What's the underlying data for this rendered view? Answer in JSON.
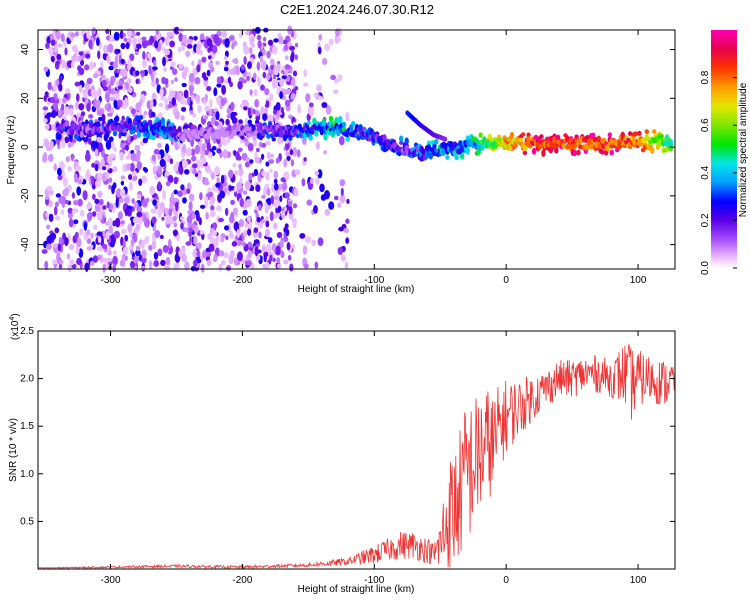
{
  "title": "C2E1.2024.246.07.30.R12",
  "colors": {
    "line": "#ee3333",
    "axis": "#000000"
  },
  "chart_data": [
    {
      "type": "heatmap",
      "xlabel": "Height of straight line (km)",
      "ylabel": "Frequency (Hz)",
      "xlim": [
        -355,
        128
      ],
      "ylim": [
        -50,
        48
      ],
      "x_ticks": [
        "-300",
        "-200",
        "-100",
        "0",
        "100"
      ],
      "y_ticks": [
        "40",
        "20",
        "0",
        "-20",
        "-40"
      ],
      "colorbar": {
        "label": "Normalized spectral amplitude",
        "range": [
          0,
          1
        ],
        "ticks": [
          "0.0",
          "0.2",
          "0.4",
          "0.6",
          "0.8"
        ],
        "colors": [
          "#ffffff",
          "#e6b3ff",
          "#a64dff",
          "#5a00e6",
          "#0000ff",
          "#00a0ff",
          "#00e6e6",
          "#00e600",
          "#80e600",
          "#e6e600",
          "#ff9900",
          "#ff3300",
          "#e6004d",
          "#ff00b3"
        ]
      },
      "main_ridge": [
        {
          "x": -340,
          "y": 8,
          "a": 0.3
        },
        {
          "x": -320,
          "y": 7,
          "a": 0.28
        },
        {
          "x": -300,
          "y": 8,
          "a": 0.3
        },
        {
          "x": -280,
          "y": 9,
          "a": 0.35
        },
        {
          "x": -265,
          "y": 8,
          "a": 0.4
        },
        {
          "x": -255,
          "y": 7,
          "a": 0.4
        },
        {
          "x": -245,
          "y": 5,
          "a": 0.2
        },
        {
          "x": -220,
          "y": 6,
          "a": 0.15
        },
        {
          "x": -190,
          "y": 7,
          "a": 0.25
        },
        {
          "x": -170,
          "y": 7,
          "a": 0.3
        },
        {
          "x": -150,
          "y": 7,
          "a": 0.4
        },
        {
          "x": -130,
          "y": 8,
          "a": 0.5
        },
        {
          "x": -110,
          "y": 6,
          "a": 0.35
        },
        {
          "x": -95,
          "y": 3,
          "a": 0.35
        },
        {
          "x": -80,
          "y": 0,
          "a": 0.3
        },
        {
          "x": -65,
          "y": -3,
          "a": 0.35
        },
        {
          "x": -50,
          "y": -1,
          "a": 0.45
        },
        {
          "x": -35,
          "y": 0,
          "a": 0.4
        },
        {
          "x": -20,
          "y": 1,
          "a": 0.55
        },
        {
          "x": 0,
          "y": 1.5,
          "a": 0.8
        },
        {
          "x": 20,
          "y": 1.5,
          "a": 0.95
        },
        {
          "x": 40,
          "y": 1.5,
          "a": 0.95
        },
        {
          "x": 60,
          "y": 1.5,
          "a": 0.95
        },
        {
          "x": 80,
          "y": 1.5,
          "a": 0.95
        },
        {
          "x": 100,
          "y": 2,
          "a": 0.9
        },
        {
          "x": 115,
          "y": 3,
          "a": 0.7
        },
        {
          "x": 125,
          "y": 2,
          "a": 0.6
        }
      ],
      "branch": [
        {
          "x": -75,
          "y": 14,
          "a": 0.3
        },
        {
          "x": -65,
          "y": 9,
          "a": 0.25
        },
        {
          "x": -55,
          "y": 5,
          "a": 0.2
        },
        {
          "x": -45,
          "y": 3,
          "a": 0.15
        }
      ],
      "scatter_regions": [
        {
          "x_from": -350,
          "x_to": -160,
          "density": 1.0
        },
        {
          "x_from": -160,
          "x_to": -120,
          "density": 0.25
        }
      ]
    },
    {
      "type": "line",
      "xlabel": "Height of straight line (km)",
      "ylabel": "SNR (10 * v/v)",
      "y_multiplier": "(x10",
      "y_multiplier_exp": "4",
      "y_multiplier_close": ")",
      "xlim": [
        -355,
        128
      ],
      "ylim": [
        0,
        25000
      ],
      "x_ticks": [
        "-300",
        "-200",
        "-100",
        "0",
        "100"
      ],
      "y_ticks": [
        "2.5",
        "2.0",
        "1.5",
        "1.0",
        "0.5"
      ],
      "series": [
        {
          "color": "#ee3333",
          "x": [
            -355,
            -300,
            -250,
            -200,
            -150,
            -120,
            -100,
            -90,
            -80,
            -70,
            -60,
            -55,
            -50,
            -45,
            -40,
            -35,
            -30,
            -25,
            -20,
            -15,
            -12,
            -10,
            -5,
            0,
            5,
            10,
            20,
            30,
            40,
            50,
            60,
            70,
            80,
            90,
            95,
            100,
            110,
            120,
            128
          ],
          "y": [
            100,
            200,
            300,
            200,
            400,
            800,
            1500,
            2000,
            2500,
            2500,
            2000,
            1500,
            2500,
            5000,
            6000,
            8000,
            10000,
            11000,
            12000,
            13000,
            13500,
            12500,
            15000,
            16000,
            16500,
            17000,
            18000,
            19000,
            20000,
            20000,
            20500,
            20500,
            20000,
            20500,
            19500,
            20000,
            20000,
            19500,
            20000
          ],
          "spread": [
            50,
            100,
            150,
            150,
            200,
            400,
            1000,
            1200,
            1500,
            1500,
            1400,
            1200,
            3000,
            6000,
            7000,
            7000,
            8000,
            7000,
            7000,
            6000,
            6000,
            6000,
            4500,
            4000,
            3500,
            3000,
            2500,
            2000,
            2000,
            2000,
            2000,
            2000,
            2000,
            3500,
            4000,
            3000,
            2500,
            2500,
            2000
          ]
        }
      ]
    }
  ]
}
